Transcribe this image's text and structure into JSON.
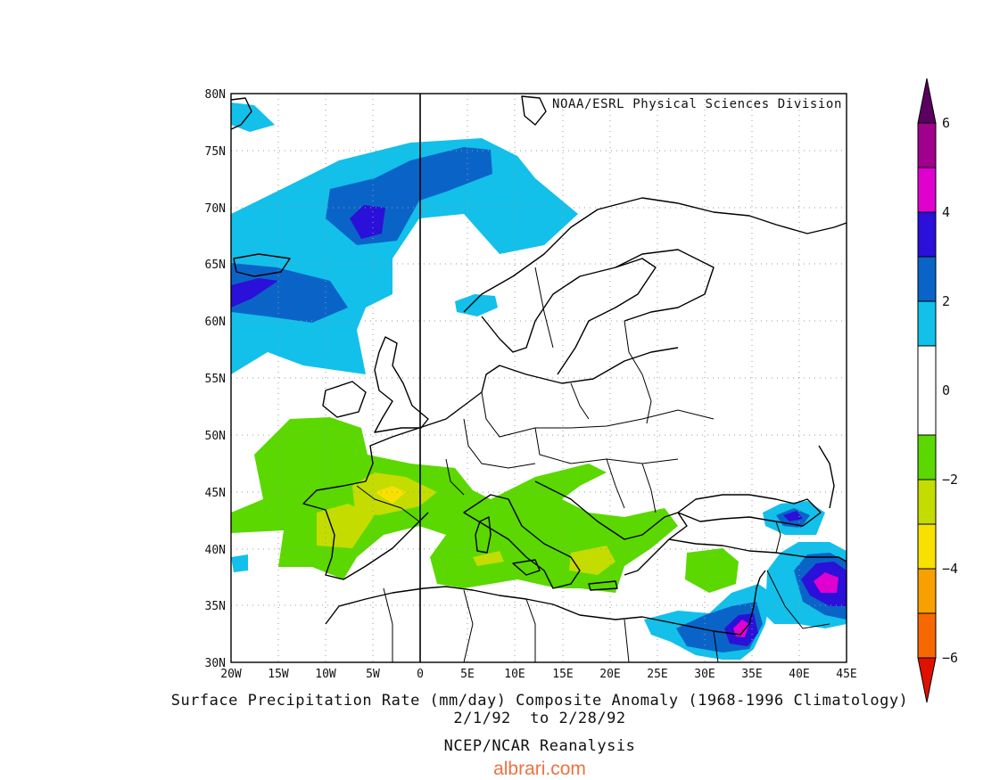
{
  "map": {
    "attribution": "NOAA/ESRL Physical Sciences Division",
    "lon_ticks": [
      "20W",
      "15W",
      "10W",
      "5W",
      "0",
      "5E",
      "10E",
      "15E",
      "20E",
      "25E",
      "30E",
      "35E",
      "40E",
      "45E"
    ],
    "lat_ticks": [
      "80N",
      "75N",
      "70N",
      "65N",
      "60N",
      "55N",
      "50N",
      "45N",
      "40N",
      "35N",
      "30N"
    ],
    "lon_range": [
      -20,
      45
    ],
    "lat_range": [
      30,
      80
    ],
    "grid": "dotted",
    "prime_meridian_line": true
  },
  "colorbar": {
    "labels": [
      "6",
      "4",
      "2",
      "0",
      "−2",
      "−4",
      "−6"
    ],
    "levels": [
      {
        "from": 5,
        "to": 6,
        "color": "#a0008c"
      },
      {
        "from": 4,
        "to": 5,
        "color": "#e000d0"
      },
      {
        "from": 3,
        "to": 4,
        "color": "#2a10d8"
      },
      {
        "from": 2,
        "to": 3,
        "color": "#0a64c8"
      },
      {
        "from": 1,
        "to": 2,
        "color": "#12c0ea"
      },
      {
        "from": -1,
        "to": 1,
        "color": "#ffffff"
      },
      {
        "from": -2,
        "to": -1,
        "color": "#5ad800"
      },
      {
        "from": -3,
        "to": -2,
        "color": "#c4dc00"
      },
      {
        "from": -4,
        "to": -3,
        "color": "#f8e000"
      },
      {
        "from": -5,
        "to": -4,
        "color": "#f8a000"
      },
      {
        "from": -6,
        "to": -5,
        "color": "#f86800"
      }
    ],
    "top_cap_color": "#5a0060",
    "bottom_cap_color": "#e01000"
  },
  "captions": {
    "title": "Surface Precipitation Rate (mm/day) Composite Anomaly (1968-1996 Climatology)",
    "dates": "2/1/92  to 2/28/92",
    "source": "NCEP/NCAR Reanalysis",
    "credit": "albrari.com",
    "credit_color": "#f07040"
  }
}
